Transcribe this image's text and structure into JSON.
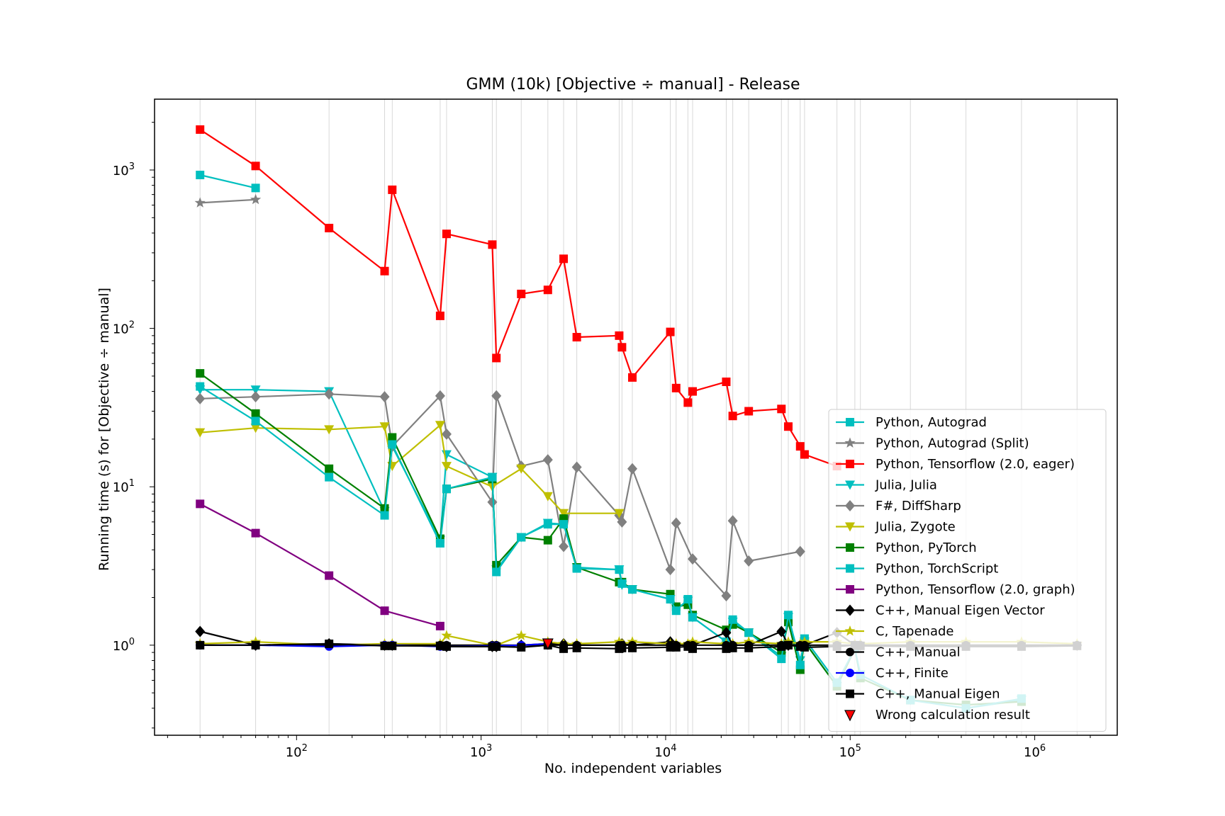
{
  "chart_data": {
    "type": "line",
    "title": "GMM (10k) [Objective ÷ manual] - Release",
    "xlabel": "No. independent variables",
    "ylabel": "Running time (s) for [Objective ÷ manual]",
    "xscale": "log",
    "yscale": "log",
    "xlim": [
      17,
      2800000
    ],
    "ylim": [
      0.27,
      2800
    ],
    "xticks": [
      {
        "value": 100,
        "label": "10^2"
      },
      {
        "value": 1000,
        "label": "10^3"
      },
      {
        "value": 10000,
        "label": "10^4"
      },
      {
        "value": 100000,
        "label": "10^5"
      },
      {
        "value": 1000000,
        "label": "10^6"
      }
    ],
    "yticks": [
      {
        "value": 1,
        "label": "10^0"
      },
      {
        "value": 10,
        "label": "10^1"
      },
      {
        "value": 100,
        "label": "10^2"
      },
      {
        "value": 1000,
        "label": "10^3"
      }
    ],
    "vgrid_x": [
      30,
      60,
      150,
      300,
      330,
      600,
      650,
      1150,
      1210,
      1650,
      2300,
      2800,
      3300,
      5600,
      5800,
      6600,
      10600,
      11400,
      13200,
      14000,
      21300,
      23100,
      28200,
      42400,
      46200,
      53600,
      56600,
      84800,
      106000,
      113600,
      212000,
      424000,
      848000,
      1696000
    ],
    "legend_position": "lower right",
    "series": [
      {
        "name": "Python, Autograd",
        "color": "#00bfbf",
        "marker": "s",
        "x": [
          30,
          60
        ],
        "y": [
          930,
          770
        ]
      },
      {
        "name": "Python, Autograd (Split)",
        "color": "#808080",
        "marker": "*",
        "x": [
          30,
          60
        ],
        "y": [
          620,
          650
        ]
      },
      {
        "name": "Python, Tensorflow (2.0, eager)",
        "color": "#ff0000",
        "marker": "s",
        "x": [
          30,
          60,
          150,
          300,
          330,
          600,
          650,
          1150,
          1210,
          1650,
          2300,
          2800,
          3300,
          5600,
          5800,
          6600,
          10600,
          11400,
          13200,
          14000,
          21300,
          23100,
          28200,
          42400,
          46200,
          53600,
          56600,
          84800
        ],
        "y": [
          1800,
          1060,
          430,
          230,
          750,
          120,
          395,
          338,
          65,
          165,
          175,
          275,
          88,
          90,
          76,
          49,
          95,
          42,
          34,
          40,
          46,
          28,
          30,
          31,
          24,
          18,
          16,
          13.5
        ]
      },
      {
        "name": "Julia, Julia",
        "color": "#00bfbf",
        "marker": "v",
        "x": [
          30,
          60,
          150,
          300,
          330,
          600,
          650,
          1150,
          1210,
          1650,
          2300,
          2800,
          3300,
          5600,
          5800,
          6600,
          10600,
          11400,
          13200,
          14000,
          21300,
          23100,
          28200,
          42400,
          46200,
          53600,
          56600,
          84800,
          106000,
          113600,
          212000,
          424000,
          848000
        ],
        "y": [
          41,
          41,
          40,
          7,
          18,
          4.6,
          16,
          11.5,
          3.0,
          4.8,
          5.9,
          5.8,
          3.1,
          3.0,
          2.4,
          2.25,
          1.95,
          1.7,
          1.9,
          1.5,
          1.05,
          1.4,
          1.2,
          0.85,
          1.5,
          0.8,
          1.05,
          0.55,
          0.95,
          0.65,
          0.45,
          0.4,
          0.45
        ]
      },
      {
        "name": "F#, DiffSharp",
        "color": "#808080",
        "marker": "D",
        "x": [
          30,
          60,
          150,
          300,
          330,
          600,
          650,
          1150,
          1210,
          1650,
          2300,
          2800,
          3300,
          5600,
          5800,
          6600,
          10600,
          11400,
          13200,
          14000,
          21300,
          23100,
          28200,
          53600
        ],
        "y": [
          36,
          37,
          38.5,
          37,
          18,
          37.5,
          21.5,
          8,
          37.5,
          13.5,
          14.8,
          4.2,
          13.3,
          6.6,
          6.0,
          13.0,
          3.0,
          5.9,
          null,
          3.5,
          2.05,
          6.1,
          3.4,
          3.9
        ]
      },
      {
        "name": "Julia, Zygote",
        "color": "#bfbf00",
        "marker": "v",
        "x": [
          30,
          60,
          150,
          300,
          330,
          600,
          650,
          1150,
          1650,
          2300,
          2800,
          5600
        ],
        "y": [
          22,
          23.5,
          23,
          24,
          13.5,
          24.5,
          13.5,
          10,
          13,
          8.7,
          6.8,
          6.8
        ]
      },
      {
        "name": "Python, PyTorch",
        "color": "#008000",
        "marker": "s",
        "x": [
          30,
          60,
          150,
          300,
          330,
          600,
          650,
          1150,
          1210,
          1650,
          2300,
          2800,
          3300,
          5600,
          5800,
          6600,
          10600,
          11400,
          13200,
          14000,
          21300,
          23100,
          28200,
          42400,
          46200,
          53600,
          56600,
          84800,
          106000,
          113600,
          212000,
          424000,
          848000
        ],
        "y": [
          52,
          29,
          13,
          7.3,
          20.5,
          4.7,
          9.7,
          11.2,
          3.2,
          4.8,
          4.6,
          6.3,
          3.1,
          2.5,
          2.5,
          2.25,
          2.1,
          1.75,
          1.8,
          1.55,
          1.25,
          1.35,
          1.2,
          0.9,
          1.4,
          0.7,
          1.05,
          0.55,
          0.95,
          0.62,
          0.45,
          0.42,
          0.44
        ]
      },
      {
        "name": "Python, TorchScript",
        "color": "#00bfbf",
        "marker": "s",
        "x": [
          30,
          60,
          150,
          300,
          330,
          600,
          650,
          1150,
          1210,
          1650,
          2300,
          2800,
          3300,
          5600,
          5800,
          6600,
          10600,
          11400,
          13200,
          14000,
          21300,
          23100,
          28200,
          42400,
          46200,
          53600,
          56600,
          84800,
          106000,
          113600,
          212000,
          424000,
          848000
        ],
        "y": [
          43,
          26,
          11.5,
          6.6,
          18.5,
          4.4,
          9.7,
          11.5,
          2.9,
          4.8,
          5.8,
          5.8,
          3.05,
          3.0,
          2.45,
          2.25,
          1.95,
          1.65,
          1.95,
          1.5,
          1.05,
          1.45,
          1.2,
          0.82,
          1.55,
          0.75,
          1.1,
          0.58,
          0.95,
          0.65,
          0.45,
          0.4,
          0.46
        ]
      },
      {
        "name": "Python, Tensorflow (2.0, graph)",
        "color": "#800080",
        "marker": "s",
        "x": [
          30,
          60,
          150,
          300,
          600
        ],
        "y": [
          7.8,
          5.1,
          2.75,
          1.65,
          1.32
        ]
      },
      {
        "name": "C++, Manual Eigen Vector",
        "color": "#000000",
        "marker": "D",
        "x": [
          30,
          60,
          150,
          300,
          330,
          600,
          650,
          1150,
          1210,
          1650,
          2300,
          2800,
          3300,
          5600,
          5800,
          6600,
          10600,
          11400,
          13200,
          14000,
          21300,
          23100,
          28200,
          42400,
          46200,
          53600,
          56600,
          84800,
          106000,
          113600,
          212000,
          424000,
          848000,
          1696000
        ],
        "y": [
          1.22,
          1.0,
          1.02,
          1.0,
          1.0,
          1.0,
          0.98,
          0.98,
          0.98,
          1.0,
          1.02,
          1.02,
          1.0,
          1.0,
          1.02,
          1.0,
          1.05,
          1.0,
          1.0,
          1.0,
          1.2,
          1.0,
          1.0,
          1.22,
          1.0,
          1.0,
          1.0,
          1.2,
          1.0,
          1.0,
          1.0,
          1.0,
          1.0,
          1.0
        ]
      },
      {
        "name": "C, Tapenade",
        "color": "#bfbf00",
        "marker": "*",
        "x": [
          30,
          60,
          150,
          300,
          330,
          600,
          650,
          1150,
          1210,
          1650,
          2300,
          2800,
          3300,
          5600,
          5800,
          6600,
          10600,
          11400,
          13200,
          14000,
          21300,
          23100,
          28200,
          42400,
          46200,
          53600,
          56600,
          84800,
          106000,
          113600,
          212000,
          424000,
          848000,
          1696000
        ],
        "y": [
          1.02,
          1.05,
          1.0,
          1.02,
          1.02,
          1.02,
          1.15,
          1.0,
          1.0,
          1.15,
          1.05,
          1.02,
          1.02,
          1.05,
          1.02,
          1.05,
          1.02,
          1.02,
          1.02,
          1.05,
          1.02,
          1.02,
          1.05,
          1.02,
          1.05,
          1.02,
          1.05,
          1.05,
          1.02,
          1.02,
          1.05,
          1.05,
          1.05,
          1.02
        ]
      },
      {
        "name": "C++, Manual",
        "color": "#000000",
        "marker": "o",
        "x": [
          30,
          60,
          150,
          300,
          330,
          600,
          650,
          1150,
          1210,
          1650,
          2300,
          2800,
          3300,
          5600,
          5800,
          6600,
          10600,
          11400,
          13200,
          14000,
          21300,
          23100,
          28200,
          42400,
          46200,
          53600,
          56600,
          84800,
          106000,
          113600,
          212000,
          424000,
          848000,
          1696000
        ],
        "y": [
          1.0,
          1.0,
          1.0,
          1.0,
          1.0,
          1.0,
          1.0,
          1.0,
          1.0,
          1.0,
          1.0,
          1.0,
          1.0,
          1.0,
          1.0,
          1.0,
          1.0,
          1.0,
          1.0,
          1.0,
          1.0,
          1.0,
          1.0,
          1.0,
          1.0,
          1.0,
          1.0,
          1.0,
          1.0,
          1.0,
          1.0,
          1.0,
          1.0,
          1.0
        ]
      },
      {
        "name": "C++, Finite",
        "color": "#0000ff",
        "marker": "o",
        "x": [
          30,
          60,
          150,
          300,
          330,
          600,
          650,
          1150,
          1210,
          1650,
          2300
        ],
        "y": [
          1.0,
          1.0,
          0.98,
          1.0,
          1.0,
          0.98,
          0.98,
          0.99,
          0.99,
          1.0,
          1.02
        ]
      },
      {
        "name": "C++, Manual Eigen",
        "color": "#000000",
        "marker": "s",
        "x": [
          30,
          60,
          150,
          300,
          330,
          600,
          650,
          1150,
          1210,
          1650,
          2300,
          2800,
          3300,
          5600,
          5800,
          6600,
          10600,
          11400,
          13200,
          14000,
          21300,
          23100,
          28200,
          42400,
          46200,
          53600,
          56600,
          84800,
          106000,
          113600,
          212000,
          424000,
          848000,
          1696000
        ],
        "y": [
          1.0,
          1.0,
          1.02,
          0.99,
          0.99,
          0.99,
          0.98,
          0.98,
          0.98,
          0.97,
          1.0,
          0.95,
          0.96,
          0.95,
          0.96,
          0.96,
          0.97,
          0.97,
          0.98,
          0.95,
          0.95,
          0.96,
          0.96,
          0.98,
          1.0,
          0.98,
          0.97,
          0.98,
          1.0,
          0.99,
          0.98,
          0.98,
          0.98,
          0.99
        ]
      },
      {
        "name": "Wrong calculation result",
        "color": "#ff0000",
        "marker": "wrong",
        "legend_only": false,
        "x": [
          2300
        ],
        "y": [
          1.03
        ]
      }
    ]
  }
}
